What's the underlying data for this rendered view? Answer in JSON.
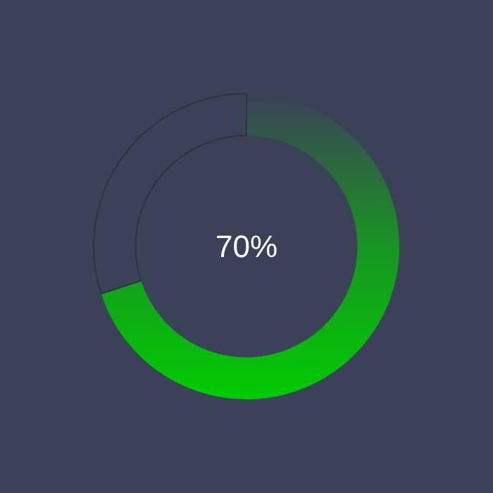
{
  "chart_data": {
    "type": "donut",
    "categories": [
      null,
      null
    ],
    "values": [
      70,
      30
    ],
    "colors": [
      "#00cc00",
      "#3b4157"
    ],
    "value_labels": [
      "70%",
      null
    ]
  }
}
